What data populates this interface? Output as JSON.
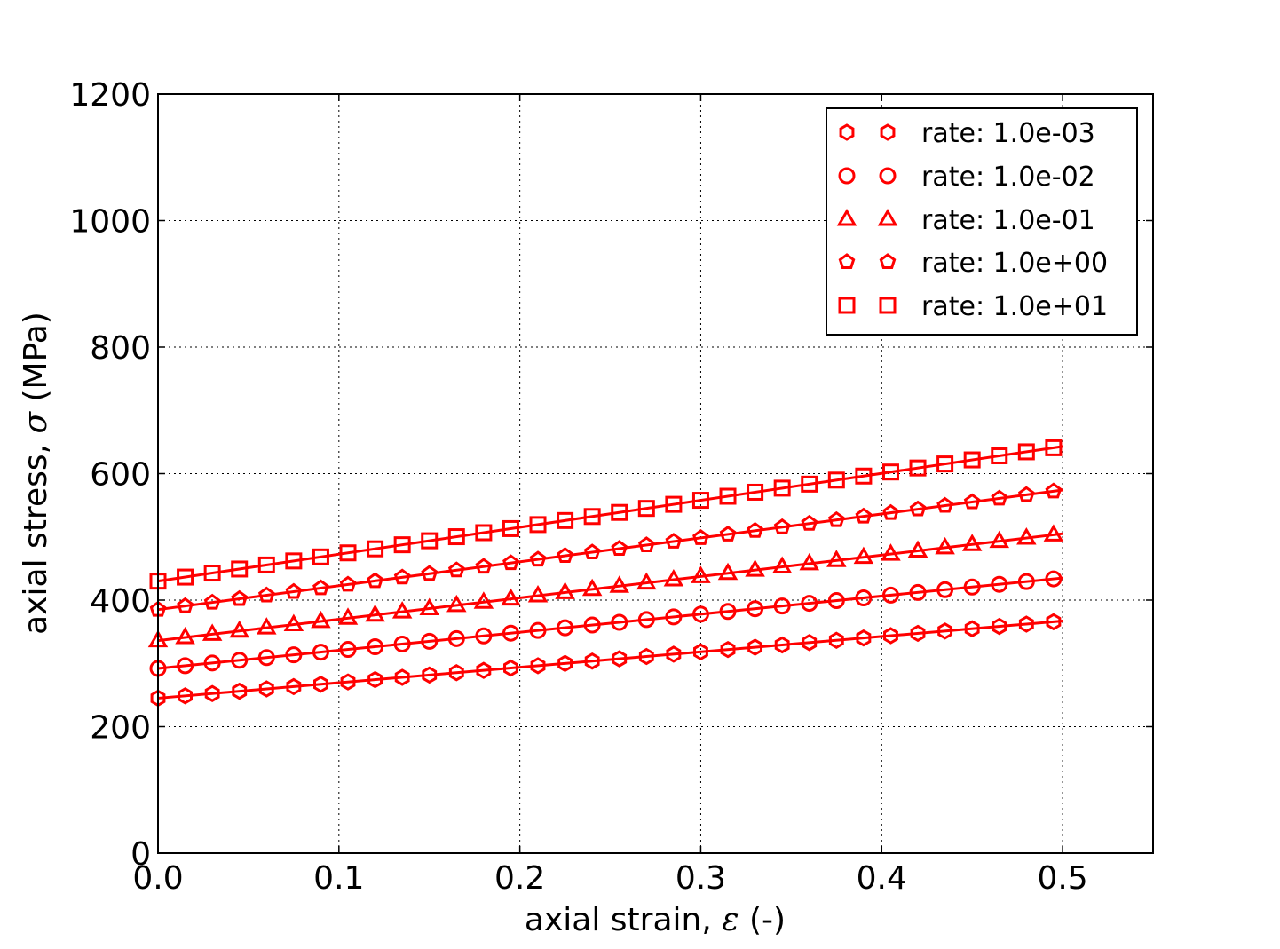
{
  "chart_data": {
    "type": "line",
    "xlabel": "axial strain, ",
    "xlabel_symbol": "ε",
    "xlabel_unit": " (-)",
    "ylabel": "axial stress, ",
    "ylabel_symbol": "σ",
    "ylabel_unit": " (MPa)",
    "xlim": [
      0.0,
      0.55
    ],
    "ylim": [
      0,
      1200
    ],
    "xticks": [
      0.0,
      0.1,
      0.2,
      0.3,
      0.4,
      0.5
    ],
    "xtick_labels": [
      "0.0",
      "0.1",
      "0.2",
      "0.3",
      "0.4",
      "0.5"
    ],
    "yticks": [
      0,
      200,
      400,
      600,
      800,
      1000,
      1200
    ],
    "ytick_labels": [
      "0",
      "200",
      "400",
      "600",
      "800",
      "1000",
      "1200"
    ],
    "grid": true,
    "legend_position": "top-right",
    "marker_x_start": 0.0,
    "marker_x_step": 0.015,
    "marker_count": 34,
    "series": [
      {
        "name": "rate: 1.0e-03",
        "marker": "hexagon",
        "color": "#ff0000",
        "x": [
          0.0,
          0.5
        ],
        "y": [
          245,
          367
        ]
      },
      {
        "name": "rate: 1.0e-02",
        "marker": "circle",
        "color": "#ff0000",
        "x": [
          0.0,
          0.5
        ],
        "y": [
          292,
          435
        ]
      },
      {
        "name": "rate: 1.0e-01",
        "marker": "triangle",
        "color": "#ff0000",
        "x": [
          0.0,
          0.5
        ],
        "y": [
          336,
          505
        ]
      },
      {
        "name": "rate: 1.0e+00",
        "marker": "pentagon",
        "color": "#ff0000",
        "x": [
          0.0,
          0.5
        ],
        "y": [
          385,
          574
        ]
      },
      {
        "name": "rate: 1.0e+01",
        "marker": "square",
        "color": "#ff0000",
        "x": [
          0.0,
          0.5
        ],
        "y": [
          430,
          643
        ]
      }
    ]
  }
}
